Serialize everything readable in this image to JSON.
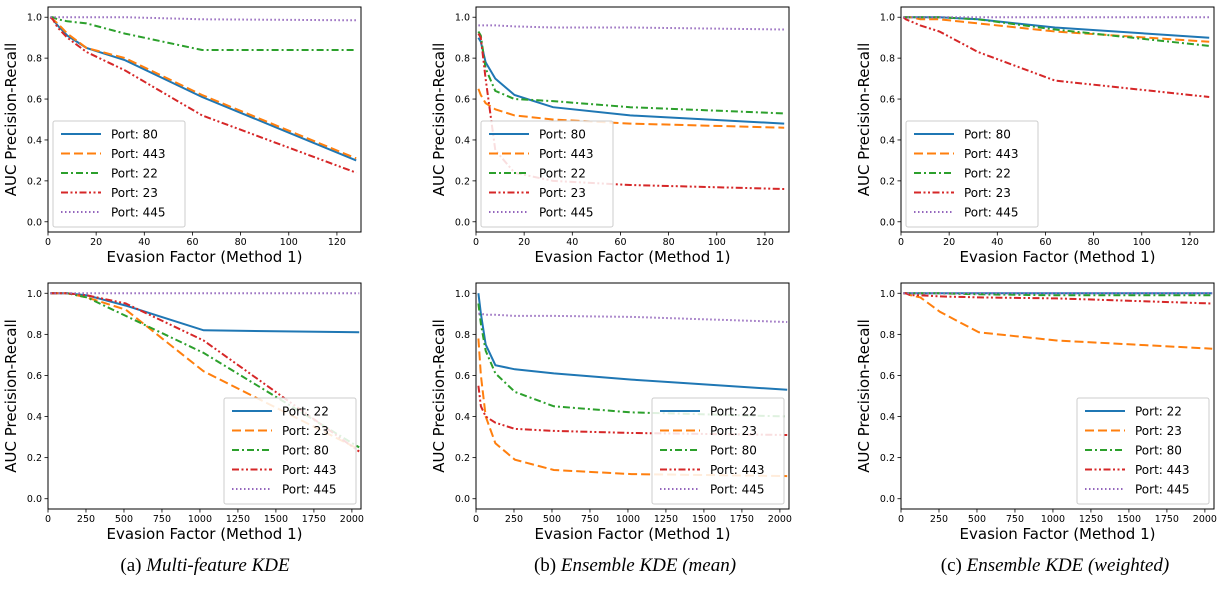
{
  "figure": {
    "captions": [
      {
        "label": "(a)",
        "title": "Multi-feature KDE"
      },
      {
        "label": "(b)",
        "title": "Ensemble KDE (mean)"
      },
      {
        "label": "(c)",
        "title": "Ensemble KDE (weighted)"
      }
    ]
  },
  "colors": {
    "blue": "#1f77b4",
    "orange": "#ff7f0e",
    "green": "#2ca02c",
    "red": "#d62728",
    "purple": "#9467bd"
  },
  "chart_data": [
    {
      "type": "line",
      "panel": "a-top",
      "xlabel": "Evasion Factor (Method 1)",
      "ylabel": "AUC Precision-Recall",
      "xlim": [
        0,
        130
      ],
      "ylim": [
        -0.05,
        1.05
      ],
      "xticks": [
        0,
        20,
        40,
        60,
        80,
        100,
        120
      ],
      "yticks": [
        0.0,
        0.2,
        0.4,
        0.6,
        0.8,
        1.0
      ],
      "legend_position": "lower-left",
      "series": [
        {
          "name": "Port: 80",
          "style": "solid",
          "color": "blue",
          "x": [
            1,
            2,
            4,
            8,
            16,
            32,
            64,
            128
          ],
          "y": [
            1.0,
            0.99,
            0.96,
            0.91,
            0.85,
            0.79,
            0.61,
            0.3
          ]
        },
        {
          "name": "Port: 443",
          "style": "dashed",
          "color": "orange",
          "x": [
            1,
            2,
            4,
            8,
            16,
            32,
            64,
            128
          ],
          "y": [
            1.0,
            0.99,
            0.97,
            0.92,
            0.85,
            0.8,
            0.62,
            0.31
          ]
        },
        {
          "name": "Port: 22",
          "style": "dashdot",
          "color": "green",
          "x": [
            1,
            2,
            4,
            8,
            16,
            32,
            64,
            128
          ],
          "y": [
            1.0,
            1.0,
            0.99,
            0.98,
            0.97,
            0.92,
            0.84,
            0.84
          ]
        },
        {
          "name": "Port: 23",
          "style": "dashdotdot",
          "color": "red",
          "x": [
            1,
            2,
            4,
            8,
            16,
            32,
            64,
            128
          ],
          "y": [
            1.0,
            0.99,
            0.95,
            0.9,
            0.83,
            0.74,
            0.52,
            0.24
          ]
        },
        {
          "name": "Port: 445",
          "style": "dotted",
          "color": "purple",
          "x": [
            1,
            2,
            4,
            8,
            16,
            32,
            64,
            128
          ],
          "y": [
            1.0,
            1.0,
            1.0,
            1.0,
            1.0,
            1.0,
            0.99,
            0.985
          ]
        }
      ]
    },
    {
      "type": "line",
      "panel": "b-top",
      "xlabel": "Evasion Factor (Method 1)",
      "ylabel": "AUC Precision-Recall",
      "xlim": [
        0,
        130
      ],
      "ylim": [
        -0.05,
        1.05
      ],
      "xticks": [
        0,
        20,
        40,
        60,
        80,
        100,
        120
      ],
      "yticks": [
        0.0,
        0.2,
        0.4,
        0.6,
        0.8,
        1.0
      ],
      "legend_position": "lower-left",
      "series": [
        {
          "name": "Port: 80",
          "style": "solid",
          "color": "blue",
          "x": [
            1,
            2,
            4,
            8,
            16,
            32,
            64,
            128
          ],
          "y": [
            0.9,
            0.88,
            0.78,
            0.7,
            0.62,
            0.56,
            0.52,
            0.48
          ]
        },
        {
          "name": "Port: 443",
          "style": "dashed",
          "color": "orange",
          "x": [
            1,
            2,
            4,
            8,
            16,
            32,
            64,
            128
          ],
          "y": [
            0.65,
            0.62,
            0.58,
            0.55,
            0.52,
            0.5,
            0.48,
            0.46
          ]
        },
        {
          "name": "Port: 22",
          "style": "dashdot",
          "color": "green",
          "x": [
            1,
            2,
            4,
            8,
            16,
            32,
            64,
            128
          ],
          "y": [
            0.93,
            0.91,
            0.75,
            0.64,
            0.6,
            0.59,
            0.56,
            0.53
          ]
        },
        {
          "name": "Port: 23",
          "style": "dashdotdot",
          "color": "red",
          "x": [
            1,
            2,
            4,
            8,
            16,
            32,
            64,
            128
          ],
          "y": [
            0.92,
            0.9,
            0.7,
            0.35,
            0.24,
            0.2,
            0.18,
            0.16
          ]
        },
        {
          "name": "Port: 445",
          "style": "dotted",
          "color": "purple",
          "x": [
            1,
            2,
            4,
            8,
            16,
            32,
            64,
            128
          ],
          "y": [
            0.96,
            0.96,
            0.96,
            0.96,
            0.955,
            0.95,
            0.95,
            0.94
          ]
        }
      ]
    },
    {
      "type": "line",
      "panel": "c-top",
      "xlabel": "Evasion Factor (Method 1)",
      "ylabel": "AUC Precision-Recall",
      "xlim": [
        0,
        130
      ],
      "ylim": [
        -0.05,
        1.05
      ],
      "xticks": [
        0,
        20,
        40,
        60,
        80,
        100,
        120
      ],
      "yticks": [
        0.0,
        0.2,
        0.4,
        0.6,
        0.8,
        1.0
      ],
      "legend_position": "lower-left",
      "series": [
        {
          "name": "Port: 80",
          "style": "solid",
          "color": "blue",
          "x": [
            1,
            2,
            4,
            8,
            16,
            32,
            64,
            128
          ],
          "y": [
            1.0,
            1.0,
            1.0,
            1.0,
            1.0,
            0.99,
            0.95,
            0.9
          ]
        },
        {
          "name": "Port: 443",
          "style": "dashed",
          "color": "orange",
          "x": [
            1,
            2,
            4,
            8,
            16,
            32,
            64,
            128
          ],
          "y": [
            1.0,
            1.0,
            1.0,
            0.99,
            0.99,
            0.97,
            0.93,
            0.88
          ]
        },
        {
          "name": "Port: 22",
          "style": "dashdot",
          "color": "green",
          "x": [
            1,
            2,
            4,
            8,
            16,
            32,
            64,
            128
          ],
          "y": [
            1.0,
            1.0,
            1.0,
            1.0,
            1.0,
            0.99,
            0.94,
            0.86
          ]
        },
        {
          "name": "Port: 23",
          "style": "dashdotdot",
          "color": "red",
          "x": [
            1,
            2,
            4,
            8,
            16,
            32,
            64,
            128
          ],
          "y": [
            1.0,
            0.99,
            0.98,
            0.96,
            0.93,
            0.83,
            0.69,
            0.61
          ]
        },
        {
          "name": "Port: 445",
          "style": "dotted",
          "color": "purple",
          "x": [
            1,
            2,
            4,
            8,
            16,
            32,
            64,
            128
          ],
          "y": [
            1.0,
            1.0,
            1.0,
            1.0,
            1.0,
            1.0,
            1.0,
            1.0
          ]
        }
      ]
    },
    {
      "type": "line",
      "panel": "a-bottom",
      "xlabel": "Evasion Factor (Method 1)",
      "ylabel": "AUC Precision-Recall",
      "xlim": [
        0,
        2060
      ],
      "ylim": [
        -0.05,
        1.05
      ],
      "xticks": [
        0,
        250,
        500,
        750,
        1000,
        1250,
        1500,
        1750,
        2000
      ],
      "yticks": [
        0.0,
        0.2,
        0.4,
        0.6,
        0.8,
        1.0
      ],
      "legend_position": "lower-right",
      "series": [
        {
          "name": "Port: 22",
          "style": "solid",
          "color": "blue",
          "x": [
            16,
            32,
            64,
            128,
            256,
            512,
            1024,
            2048
          ],
          "y": [
            1.0,
            1.0,
            1.0,
            1.0,
            0.99,
            0.94,
            0.82,
            0.81
          ]
        },
        {
          "name": "Port: 23",
          "style": "dashed",
          "color": "orange",
          "x": [
            16,
            32,
            64,
            128,
            256,
            512,
            1024,
            2048
          ],
          "y": [
            1.0,
            1.0,
            1.0,
            1.0,
            0.98,
            0.92,
            0.62,
            0.24
          ]
        },
        {
          "name": "Port: 80",
          "style": "dashdot",
          "color": "green",
          "x": [
            16,
            32,
            64,
            128,
            256,
            512,
            1024,
            2048
          ],
          "y": [
            1.0,
            1.0,
            1.0,
            1.0,
            0.98,
            0.89,
            0.71,
            0.25
          ]
        },
        {
          "name": "Port: 443",
          "style": "dashdotdot",
          "color": "red",
          "x": [
            16,
            32,
            64,
            128,
            256,
            512,
            1024,
            2048
          ],
          "y": [
            1.0,
            1.0,
            1.0,
            1.0,
            0.99,
            0.95,
            0.77,
            0.23
          ]
        },
        {
          "name": "Port: 445",
          "style": "dotted",
          "color": "purple",
          "x": [
            16,
            32,
            64,
            128,
            256,
            512,
            1024,
            2048
          ],
          "y": [
            1.0,
            1.0,
            1.0,
            1.0,
            1.0,
            1.0,
            1.0,
            1.0
          ]
        }
      ]
    },
    {
      "type": "line",
      "panel": "b-bottom",
      "xlabel": "Evasion Factor (Method 1)",
      "ylabel": "AUC Precision-Recall",
      "xlim": [
        0,
        2060
      ],
      "ylim": [
        -0.05,
        1.05
      ],
      "xticks": [
        0,
        250,
        500,
        750,
        1000,
        1250,
        1500,
        1750,
        2000
      ],
      "yticks": [
        0.0,
        0.2,
        0.4,
        0.6,
        0.8,
        1.0
      ],
      "legend_position": "lower-right",
      "series": [
        {
          "name": "Port: 22",
          "style": "solid",
          "color": "blue",
          "x": [
            16,
            32,
            64,
            128,
            256,
            512,
            1024,
            2048
          ],
          "y": [
            1.0,
            0.9,
            0.75,
            0.65,
            0.63,
            0.61,
            0.58,
            0.53
          ]
        },
        {
          "name": "Port: 23",
          "style": "dashed",
          "color": "orange",
          "x": [
            16,
            32,
            64,
            128,
            256,
            512,
            1024,
            2048
          ],
          "y": [
            0.78,
            0.6,
            0.4,
            0.27,
            0.19,
            0.14,
            0.12,
            0.11
          ]
        },
        {
          "name": "Port: 80",
          "style": "dashdot",
          "color": "green",
          "x": [
            16,
            32,
            64,
            128,
            256,
            512,
            1024,
            2048
          ],
          "y": [
            0.95,
            0.85,
            0.72,
            0.61,
            0.52,
            0.45,
            0.42,
            0.4
          ]
        },
        {
          "name": "Port: 443",
          "style": "dashdotdot",
          "color": "red",
          "x": [
            16,
            32,
            64,
            128,
            256,
            512,
            1024,
            2048
          ],
          "y": [
            0.55,
            0.45,
            0.4,
            0.37,
            0.34,
            0.33,
            0.32,
            0.31
          ]
        },
        {
          "name": "Port: 445",
          "style": "dotted",
          "color": "purple",
          "x": [
            16,
            32,
            64,
            128,
            256,
            512,
            1024,
            2048
          ],
          "y": [
            0.9,
            0.9,
            0.895,
            0.895,
            0.89,
            0.89,
            0.885,
            0.86
          ]
        }
      ]
    },
    {
      "type": "line",
      "panel": "c-bottom",
      "xlabel": "Evasion Factor (Method 1)",
      "ylabel": "AUC Precision-Recall",
      "xlim": [
        0,
        2060
      ],
      "ylim": [
        -0.05,
        1.05
      ],
      "xticks": [
        0,
        250,
        500,
        750,
        1000,
        1250,
        1500,
        1750,
        2000
      ],
      "yticks": [
        0.0,
        0.2,
        0.4,
        0.6,
        0.8,
        1.0
      ],
      "legend_position": "lower-right",
      "series": [
        {
          "name": "Port: 22",
          "style": "solid",
          "color": "blue",
          "x": [
            16,
            32,
            64,
            128,
            256,
            512,
            1024,
            2048
          ],
          "y": [
            1.0,
            1.0,
            1.0,
            1.0,
            1.0,
            1.0,
            1.0,
            1.0
          ]
        },
        {
          "name": "Port: 23",
          "style": "dashed",
          "color": "orange",
          "x": [
            16,
            32,
            64,
            128,
            256,
            512,
            1024,
            2048
          ],
          "y": [
            1.0,
            1.0,
            0.99,
            0.98,
            0.91,
            0.81,
            0.77,
            0.73
          ]
        },
        {
          "name": "Port: 80",
          "style": "dashdot",
          "color": "green",
          "x": [
            16,
            32,
            64,
            128,
            256,
            512,
            1024,
            2048
          ],
          "y": [
            1.0,
            1.0,
            1.0,
            1.0,
            1.0,
            0.995,
            0.99,
            0.99
          ]
        },
        {
          "name": "Port: 443",
          "style": "dashdotdot",
          "color": "red",
          "x": [
            16,
            32,
            64,
            128,
            256,
            512,
            1024,
            2048
          ],
          "y": [
            1.0,
            1.0,
            0.99,
            0.99,
            0.985,
            0.98,
            0.975,
            0.95
          ]
        },
        {
          "name": "Port: 445",
          "style": "dotted",
          "color": "purple",
          "x": [
            16,
            32,
            64,
            128,
            256,
            512,
            1024,
            2048
          ],
          "y": [
            1.0,
            1.0,
            1.0,
            1.0,
            1.0,
            1.0,
            1.0,
            1.0
          ]
        }
      ]
    }
  ]
}
